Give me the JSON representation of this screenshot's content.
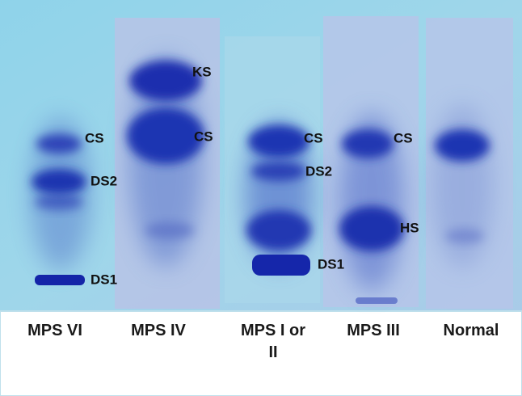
{
  "lanes": [
    {
      "label": "MPS VI",
      "bands": [
        "CS",
        "DS2",
        "DS1"
      ]
    },
    {
      "label": "MPS IV",
      "bands": [
        "KS",
        "CS"
      ]
    },
    {
      "label": "MPS I or II",
      "bands": [
        "CS",
        "DS2",
        "DS1"
      ]
    },
    {
      "label": "MPS III",
      "bands": [
        "CS",
        "HS"
      ]
    },
    {
      "label": "Normal",
      "bands": []
    }
  ]
}
